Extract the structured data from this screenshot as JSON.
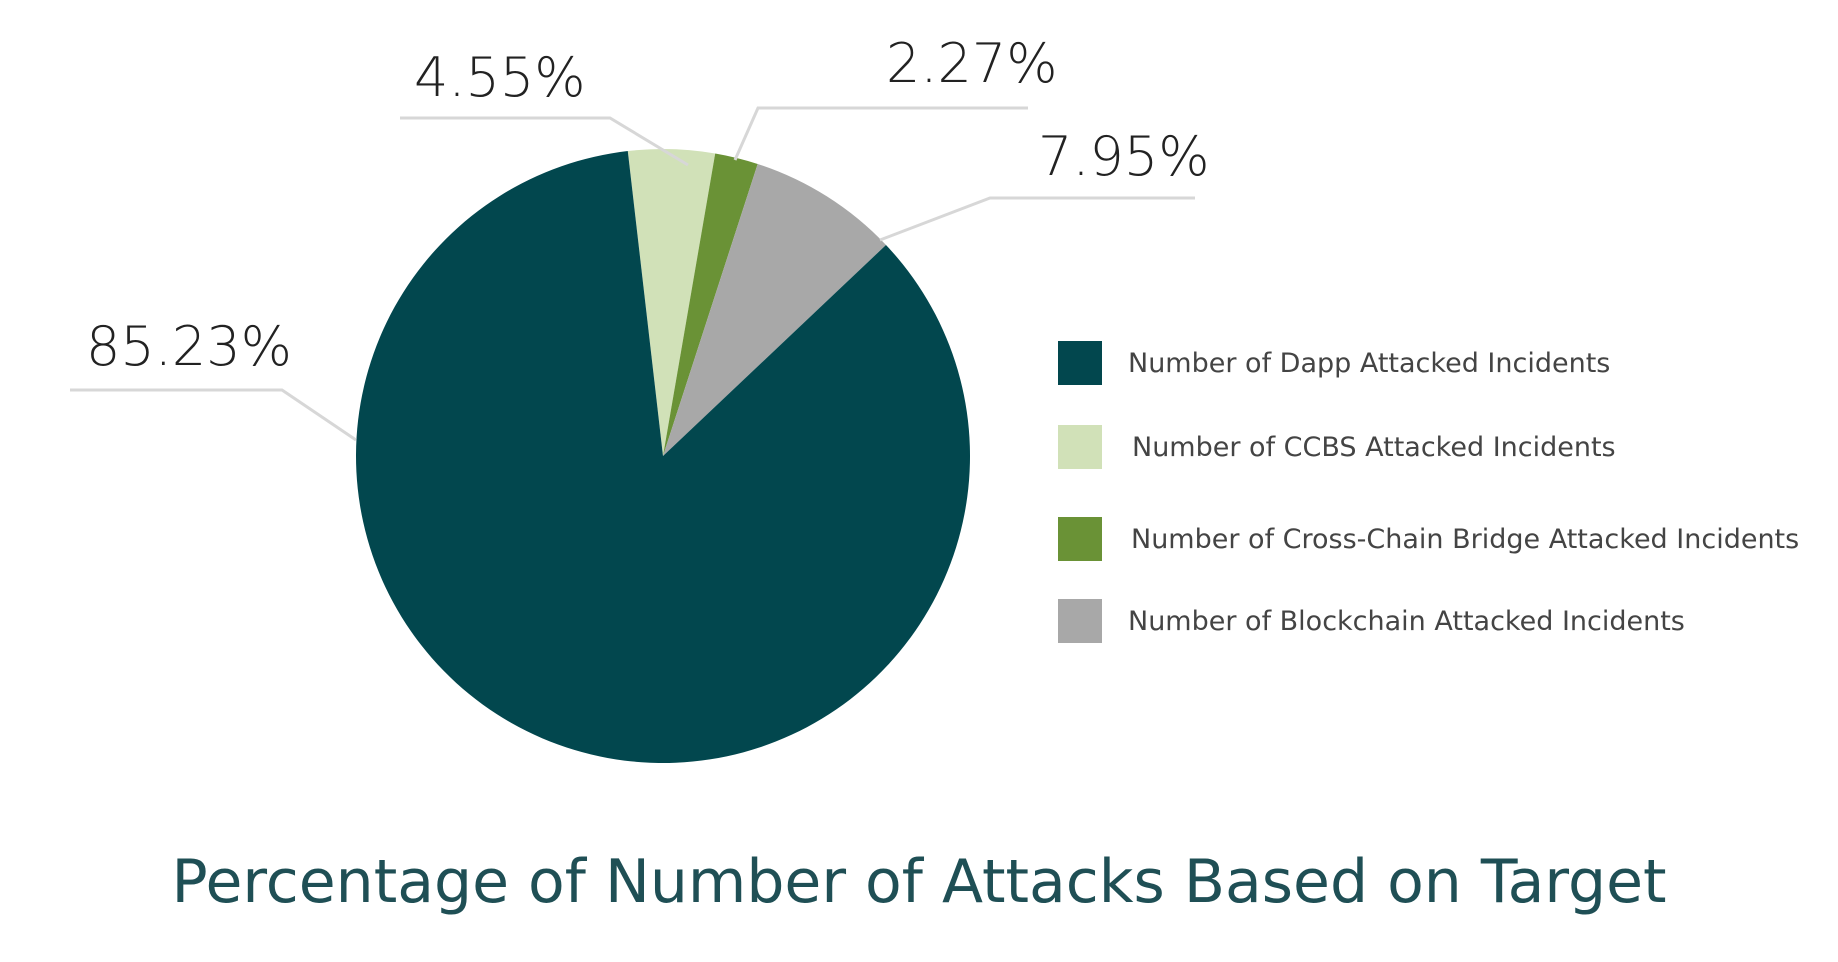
{
  "chart_data": {
    "type": "pie",
    "title": "Percentage of Number of Attacks Based on Target",
    "legend_position": "right",
    "slices": [
      {
        "name": "Number of Dapp Attacked Incidents",
        "value": 85.23,
        "label": "85.23%",
        "color": "#02474e"
      },
      {
        "name": "Number of CCBS Attacked Incidents",
        "value": 4.55,
        "label": "4.55%",
        "color": "#d1e1b8"
      },
      {
        "name": "Number of Cross-Chain Bridge Attacked Incidents",
        "value": 2.27,
        "label": "2.27%",
        "color": "#6a9236"
      },
      {
        "name": "Number of Blockchain Attacked Incidents",
        "value": 7.95,
        "label": "7.95%",
        "color": "#a8a8a8"
      }
    ]
  },
  "colors": {
    "title": "#1f4f55",
    "leader_line": "#d7d7d7",
    "label_text": "#222222",
    "legend_text": "#444444"
  }
}
